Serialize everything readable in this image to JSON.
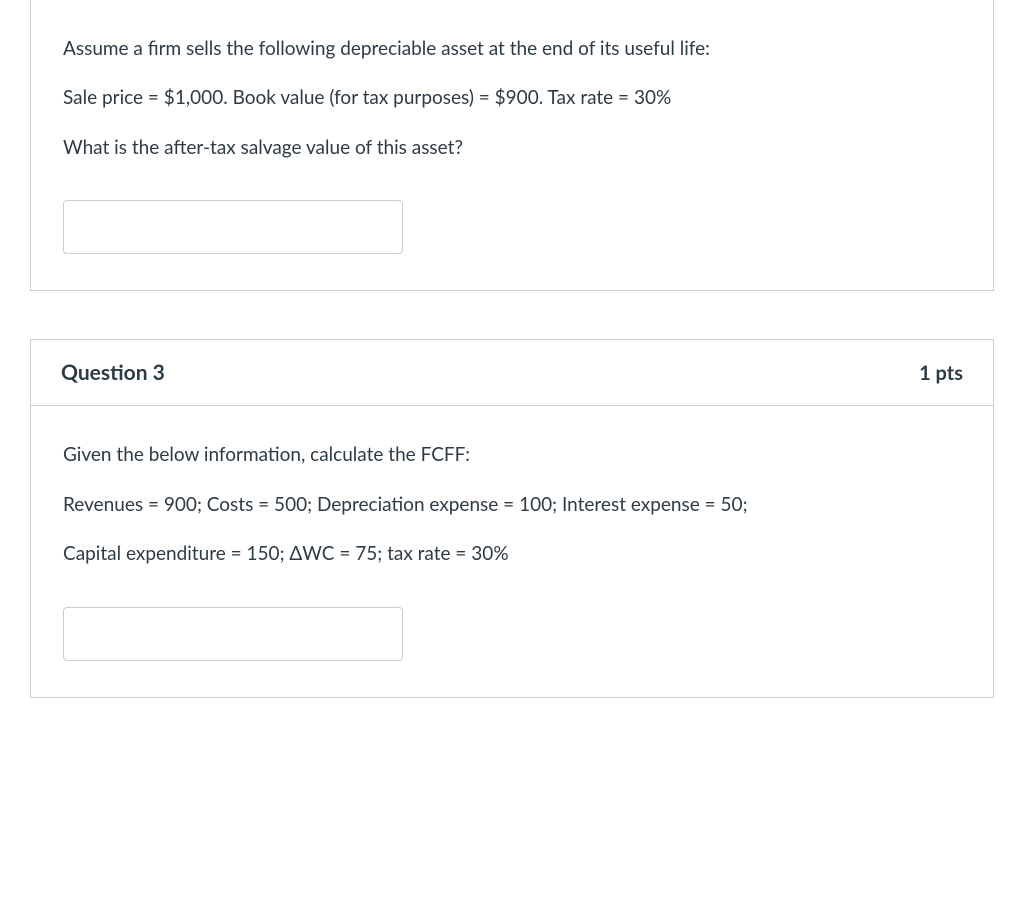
{
  "question2": {
    "text_p1": "Assume a firm sells the following depreciable asset at the end of its useful life:",
    "text_p2": "Sale price = $1,000. Book value (for tax purposes) = $900. Tax rate = 30%",
    "text_p3": "What is the after-tax salvage value of this asset?",
    "input_value": ""
  },
  "question3": {
    "header_title": "Question 3",
    "header_points": "1 pts",
    "text_p1": "Given the below information, calculate the FCFF:",
    "text_p2": "Revenues = 900; Costs = 500; Depreciation expense = 100; Interest expense = 50;",
    "text_p3": "Capital expenditure = 150; ΔWC = 75; tax rate = 30%",
    "input_value": ""
  },
  "colors": {
    "border": "#c7cdd1",
    "text": "#2d3b45",
    "background": "#ffffff"
  }
}
